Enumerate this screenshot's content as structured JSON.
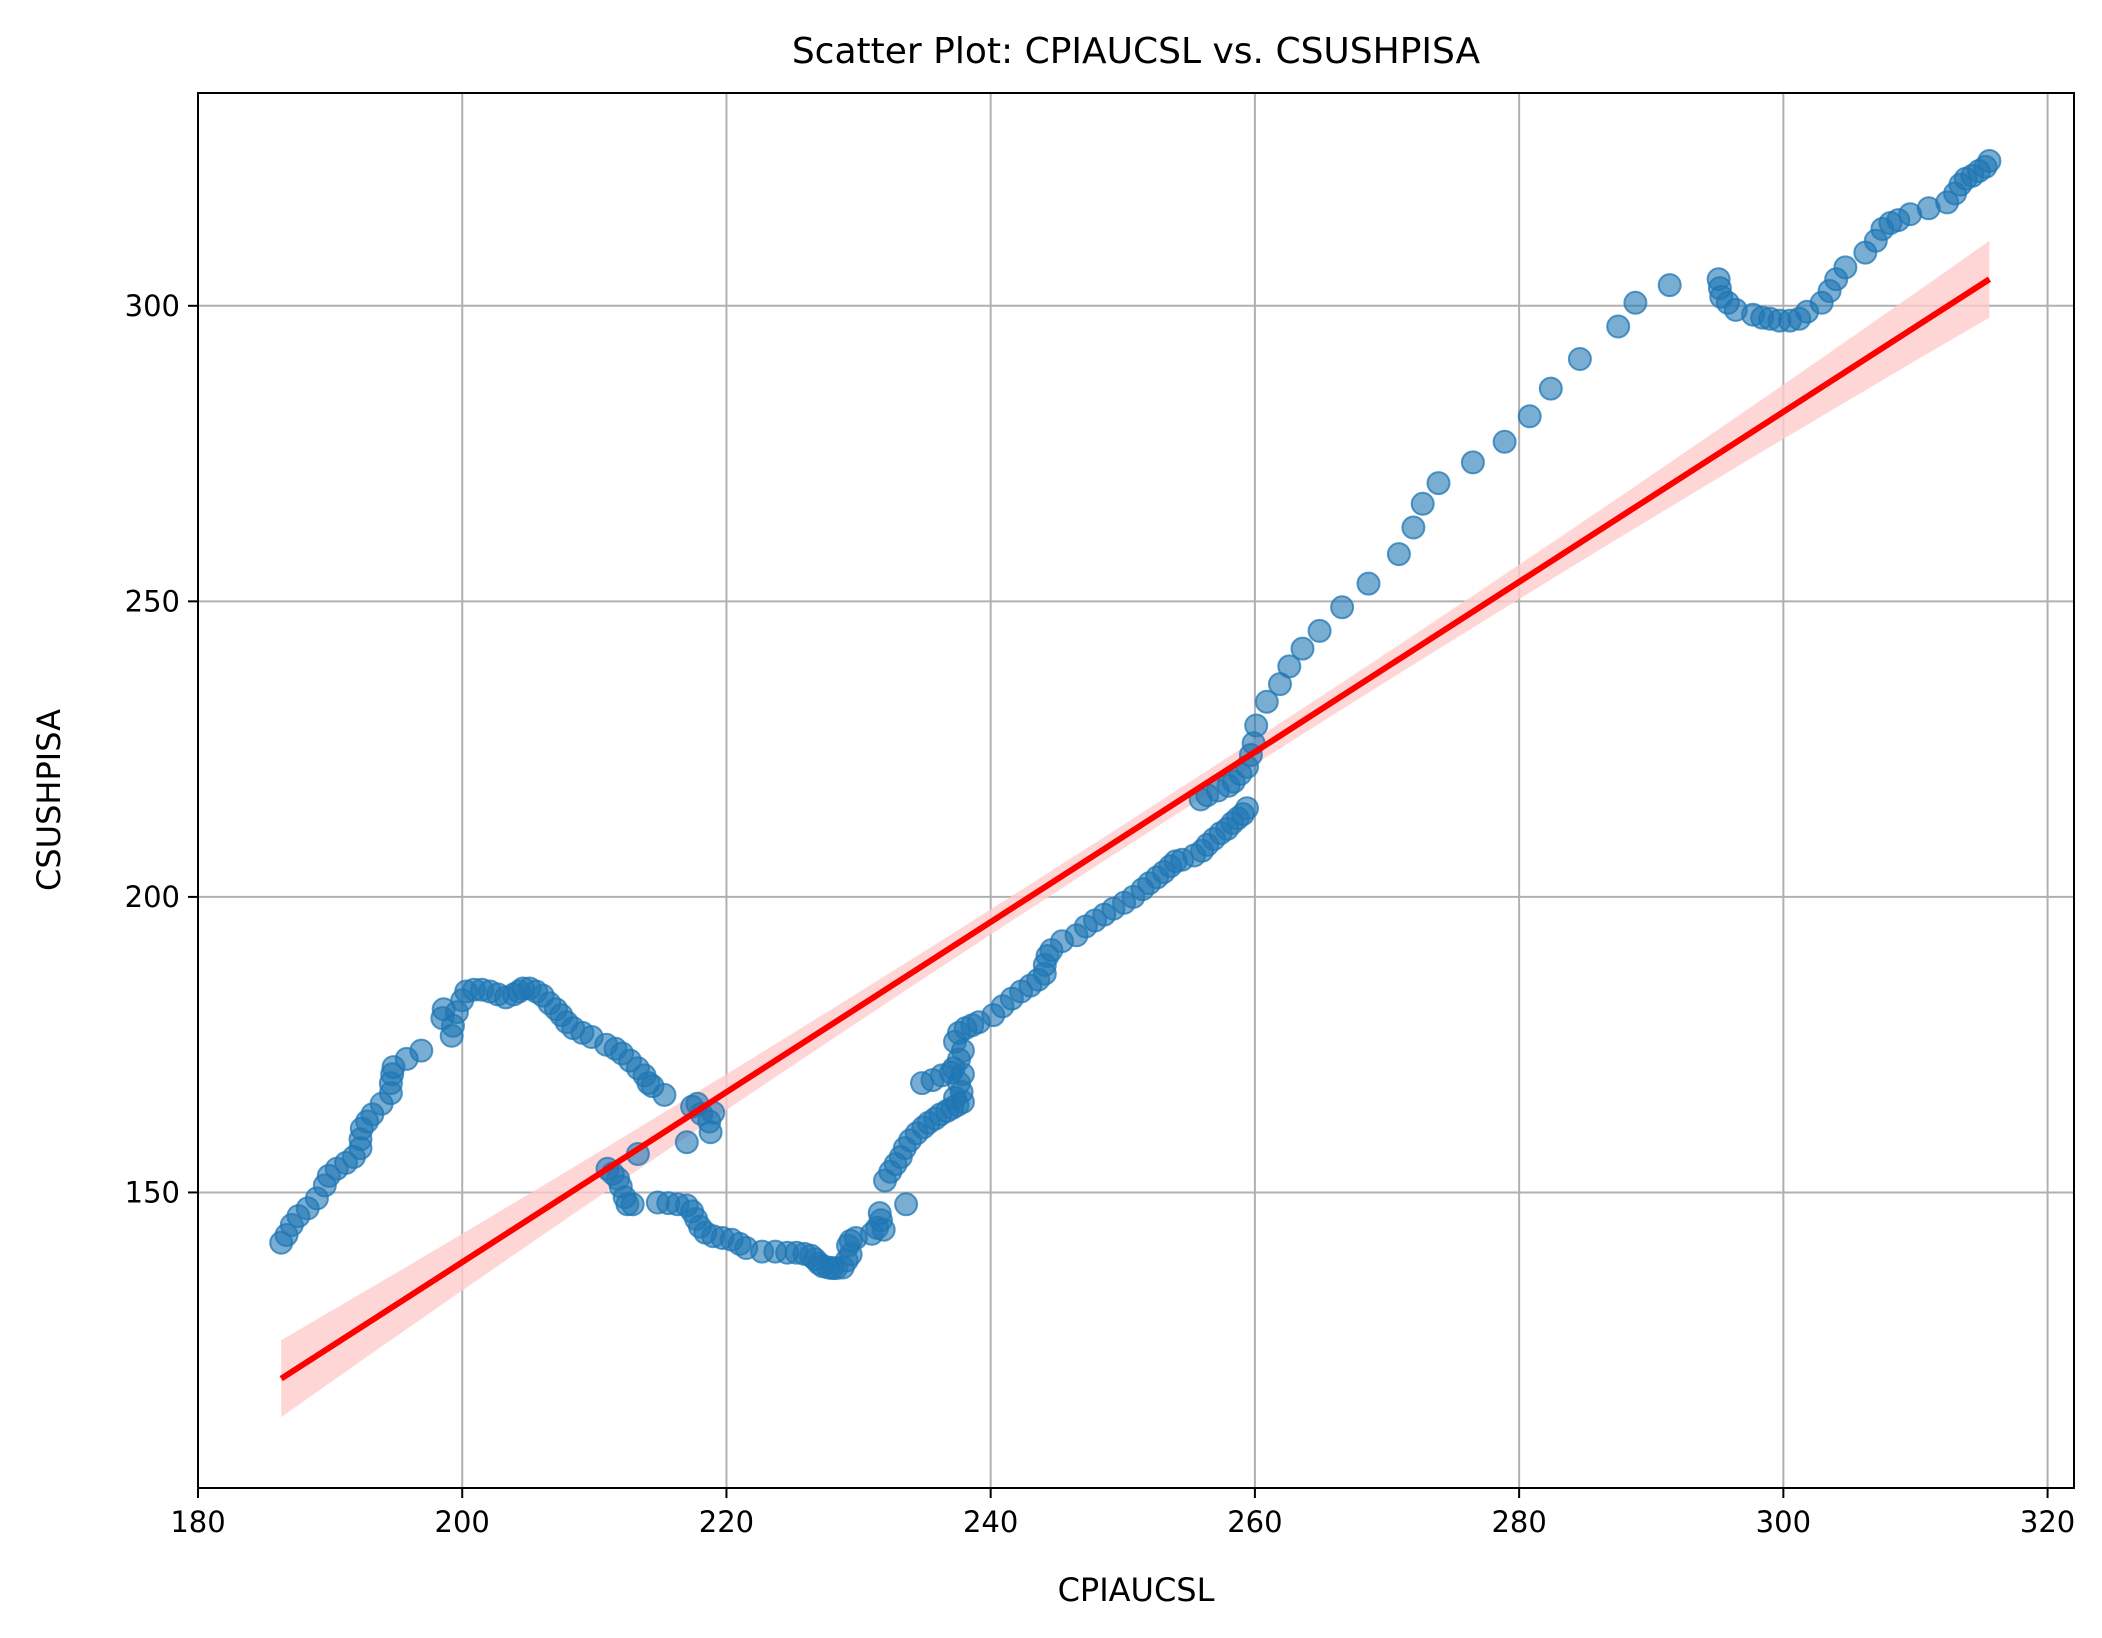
{
  "chart_data": {
    "type": "scatter",
    "title": "Scatter Plot: CPIAUCSL vs. CSUSHPISA",
    "xlabel": "CPIAUCSL",
    "ylabel": "CSUSHPISA",
    "xlim": [
      180,
      322
    ],
    "ylim": [
      100,
      336
    ],
    "xticks": [
      180,
      200,
      220,
      240,
      260,
      280,
      300,
      320
    ],
    "yticks": [
      150,
      200,
      250,
      300
    ],
    "grid": true,
    "colors": {
      "points": "#1f77b4",
      "fit_line": "#ff0000",
      "confidence_band": "#ffcccc",
      "grid": "#b0b0b0"
    },
    "series": [
      {
        "points": [
          [
            186.3,
            141.5
          ],
          [
            186.7,
            142.8
          ],
          [
            187.1,
            144.5
          ],
          [
            187.6,
            146.0
          ],
          [
            188.3,
            147.3
          ],
          [
            189.0,
            149.0
          ],
          [
            189.6,
            151.2
          ],
          [
            189.9,
            152.8
          ],
          [
            190.5,
            154.0
          ],
          [
            191.2,
            155.0
          ],
          [
            191.8,
            156.0
          ],
          [
            192.3,
            157.5
          ],
          [
            192.3,
            159.0
          ],
          [
            192.4,
            160.8
          ],
          [
            192.8,
            162.0
          ],
          [
            193.2,
            163.2
          ],
          [
            193.9,
            165.0
          ],
          [
            194.6,
            166.8
          ],
          [
            194.6,
            168.5
          ],
          [
            194.7,
            170.0
          ],
          [
            194.8,
            171.2
          ],
          [
            195.8,
            172.6
          ],
          [
            196.9,
            174.0
          ],
          [
            198.5,
            179.5
          ],
          [
            198.6,
            181.0
          ],
          [
            199.2,
            176.5
          ],
          [
            199.3,
            178.2
          ],
          [
            199.6,
            180.5
          ],
          [
            200.0,
            182.5
          ],
          [
            200.3,
            184.0
          ],
          [
            200.9,
            184.3
          ],
          [
            201.5,
            184.3
          ],
          [
            202.1,
            184.0
          ],
          [
            202.7,
            183.5
          ],
          [
            203.3,
            183.0
          ],
          [
            203.9,
            183.5
          ],
          [
            204.3,
            184.0
          ],
          [
            204.6,
            184.5
          ],
          [
            205.1,
            184.5
          ],
          [
            205.6,
            184.0
          ],
          [
            206.1,
            183.3
          ],
          [
            206.6,
            182.0
          ],
          [
            207.1,
            181.0
          ],
          [
            207.5,
            180.0
          ],
          [
            207.9,
            178.8
          ],
          [
            208.4,
            177.8
          ],
          [
            209.1,
            177.0
          ],
          [
            209.8,
            176.3
          ],
          [
            210.9,
            175.0
          ],
          [
            211.6,
            174.3
          ],
          [
            212.1,
            173.5
          ],
          [
            212.7,
            172.3
          ],
          [
            213.3,
            171.0
          ],
          [
            213.8,
            169.8
          ],
          [
            214.1,
            168.5
          ],
          [
            214.4,
            168.0
          ],
          [
            215.3,
            166.5
          ],
          [
            217.0,
            158.5
          ],
          [
            217.4,
            164.5
          ],
          [
            217.8,
            165.0
          ],
          [
            218.1,
            163.3
          ],
          [
            218.7,
            162.0
          ],
          [
            218.8,
            160.2
          ],
          [
            219.0,
            163.5
          ],
          [
            211.0,
            154.0
          ],
          [
            211.4,
            153.2
          ],
          [
            211.8,
            152.3
          ],
          [
            212.0,
            151.0
          ],
          [
            212.3,
            149.2
          ],
          [
            212.5,
            148.0
          ],
          [
            212.9,
            148.0
          ],
          [
            213.3,
            156.5
          ],
          [
            214.8,
            148.3
          ],
          [
            215.6,
            148.2
          ],
          [
            216.3,
            148.0
          ],
          [
            217.0,
            147.8
          ],
          [
            217.4,
            146.8
          ],
          [
            217.7,
            145.5
          ],
          [
            218.0,
            144.2
          ],
          [
            218.4,
            143.2
          ],
          [
            219.0,
            142.6
          ],
          [
            219.7,
            142.3
          ],
          [
            220.4,
            142.0
          ],
          [
            221.0,
            141.3
          ],
          [
            221.5,
            140.6
          ],
          [
            222.7,
            140.0
          ],
          [
            223.7,
            140.0
          ],
          [
            224.6,
            139.8
          ],
          [
            225.3,
            139.8
          ],
          [
            225.9,
            139.6
          ],
          [
            226.4,
            139.3
          ],
          [
            226.7,
            138.7
          ],
          [
            227.0,
            138.0
          ],
          [
            227.3,
            137.5
          ],
          [
            227.7,
            137.3
          ],
          [
            228.0,
            137.2
          ],
          [
            228.3,
            137.2
          ],
          [
            228.8,
            137.3
          ],
          [
            229.1,
            138.5
          ],
          [
            229.4,
            139.5
          ],
          [
            229.2,
            141.0
          ],
          [
            229.4,
            141.8
          ],
          [
            229.8,
            142.3
          ],
          [
            231.0,
            143.0
          ],
          [
            231.4,
            144.0
          ],
          [
            231.7,
            145.3
          ],
          [
            231.6,
            146.5
          ],
          [
            231.9,
            143.7
          ],
          [
            232.0,
            152.0
          ],
          [
            232.4,
            153.5
          ],
          [
            232.8,
            154.8
          ],
          [
            233.2,
            156.0
          ],
          [
            233.5,
            157.5
          ],
          [
            233.6,
            148.0
          ],
          [
            233.9,
            158.8
          ],
          [
            234.4,
            160.0
          ],
          [
            234.9,
            161.0
          ],
          [
            235.3,
            161.8
          ],
          [
            235.8,
            162.5
          ],
          [
            236.2,
            163.2
          ],
          [
            236.7,
            163.8
          ],
          [
            237.1,
            164.3
          ],
          [
            237.5,
            164.8
          ],
          [
            237.9,
            165.3
          ],
          [
            237.3,
            166.0
          ],
          [
            237.8,
            167.0
          ],
          [
            237.6,
            168.5
          ],
          [
            237.9,
            170.0
          ],
          [
            237.2,
            171.0
          ],
          [
            237.6,
            172.5
          ],
          [
            237.9,
            174.0
          ],
          [
            237.3,
            175.5
          ],
          [
            237.6,
            177.0
          ],
          [
            238.1,
            177.8
          ],
          [
            238.6,
            178.3
          ],
          [
            239.1,
            178.8
          ],
          [
            234.8,
            168.5
          ],
          [
            235.6,
            169.0
          ],
          [
            236.3,
            169.8
          ],
          [
            237.0,
            170.3
          ],
          [
            240.2,
            180.0
          ],
          [
            240.9,
            181.5
          ],
          [
            241.6,
            182.8
          ],
          [
            242.3,
            184.0
          ],
          [
            243.0,
            185.0
          ],
          [
            243.6,
            186.0
          ],
          [
            244.1,
            187.0
          ],
          [
            244.1,
            188.5
          ],
          [
            244.3,
            190.0
          ],
          [
            244.6,
            191.0
          ],
          [
            245.4,
            192.5
          ],
          [
            246.5,
            193.5
          ],
          [
            247.2,
            195.0
          ],
          [
            247.9,
            196.0
          ],
          [
            248.6,
            197.0
          ],
          [
            249.3,
            198.0
          ],
          [
            250.1,
            199.0
          ],
          [
            250.8,
            200.0
          ],
          [
            251.5,
            201.3
          ],
          [
            252.0,
            202.3
          ],
          [
            252.6,
            203.3
          ],
          [
            253.1,
            204.2
          ],
          [
            253.6,
            205.2
          ],
          [
            254.0,
            206.0
          ],
          [
            254.5,
            206.3
          ],
          [
            255.4,
            207.0
          ],
          [
            256.0,
            207.8
          ],
          [
            256.4,
            208.8
          ],
          [
            256.9,
            209.8
          ],
          [
            257.4,
            210.8
          ],
          [
            257.9,
            211.5
          ],
          [
            258.3,
            212.5
          ],
          [
            258.7,
            213.3
          ],
          [
            259.1,
            214.0
          ],
          [
            259.4,
            215.0
          ],
          [
            255.9,
            216.5
          ],
          [
            256.4,
            217.2
          ],
          [
            257.2,
            218.0
          ],
          [
            258.0,
            218.8
          ],
          [
            258.4,
            219.5
          ],
          [
            258.9,
            220.8
          ],
          [
            259.4,
            222.0
          ],
          [
            259.7,
            224.0
          ],
          [
            259.9,
            226.0
          ],
          [
            260.1,
            229.0
          ],
          [
            260.9,
            233.0
          ],
          [
            261.9,
            236.0
          ],
          [
            262.6,
            239.0
          ],
          [
            263.6,
            242.0
          ],
          [
            264.9,
            245.0
          ],
          [
            266.6,
            249.0
          ],
          [
            268.6,
            253.0
          ],
          [
            270.9,
            258.0
          ],
          [
            272.0,
            262.5
          ],
          [
            272.7,
            266.5
          ],
          [
            273.9,
            270.0
          ],
          [
            276.5,
            273.5
          ],
          [
            278.9,
            277.0
          ],
          [
            280.8,
            281.3
          ],
          [
            282.4,
            286.0
          ],
          [
            284.6,
            291.0
          ],
          [
            287.5,
            296.5
          ],
          [
            288.8,
            300.5
          ],
          [
            291.4,
            303.5
          ],
          [
            295.1,
            304.5
          ],
          [
            295.2,
            303.0
          ],
          [
            295.3,
            301.5
          ],
          [
            295.8,
            300.5
          ],
          [
            296.4,
            299.3
          ],
          [
            297.7,
            298.5
          ],
          [
            298.4,
            298.0
          ],
          [
            299.0,
            297.8
          ],
          [
            299.7,
            297.5
          ],
          [
            300.5,
            297.5
          ],
          [
            301.2,
            297.8
          ],
          [
            301.8,
            299.0
          ],
          [
            302.9,
            300.5
          ],
          [
            303.5,
            302.5
          ],
          [
            304.0,
            304.5
          ],
          [
            304.7,
            306.5
          ],
          [
            306.2,
            309.0
          ],
          [
            307.0,
            311.0
          ],
          [
            307.5,
            313.0
          ],
          [
            308.1,
            314.0
          ],
          [
            308.7,
            314.5
          ],
          [
            309.6,
            315.5
          ],
          [
            311.0,
            316.5
          ],
          [
            312.4,
            317.5
          ],
          [
            313.0,
            319.0
          ],
          [
            313.4,
            320.5
          ],
          [
            313.8,
            321.5
          ],
          [
            314.3,
            322.0
          ],
          [
            314.8,
            322.8
          ],
          [
            315.3,
            323.5
          ],
          [
            315.6,
            324.5
          ]
        ]
      }
    ],
    "regression": {
      "x_range": [
        186.3,
        315.6
      ],
      "y_range": [
        118.5,
        304.5
      ],
      "band_halfwidth_at_ends": 6.5,
      "band_halfwidth_at_center": 2.0
    }
  }
}
